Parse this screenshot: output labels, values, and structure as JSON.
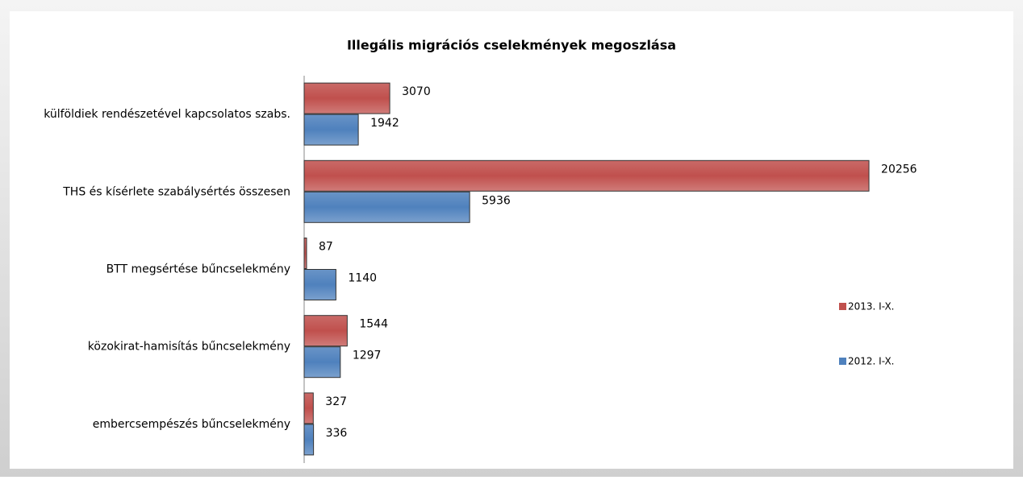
{
  "chart_data": {
    "type": "bar",
    "orientation": "horizontal",
    "title": "Illegális migrációs cselekmények megoszlása",
    "categories": [
      "külföldiek rendészetével kapcsolatos szabs.",
      "THS és kísérlete szabálysértés összesen",
      "BTT megsértése bűncselekmény",
      "közokirat-hamisítás bűncselekmény",
      "embercsempészés bűncselekmény"
    ],
    "series": [
      {
        "name": "2013. I-X.",
        "color": "#c0504d",
        "values": [
          3070,
          20256,
          87,
          1544,
          327
        ]
      },
      {
        "name": "2012. I-X.",
        "color": "#4f81bd",
        "values": [
          1942,
          5936,
          1140,
          1297,
          336
        ]
      }
    ],
    "xlim": [
      0,
      25000
    ],
    "legend": "right"
  }
}
